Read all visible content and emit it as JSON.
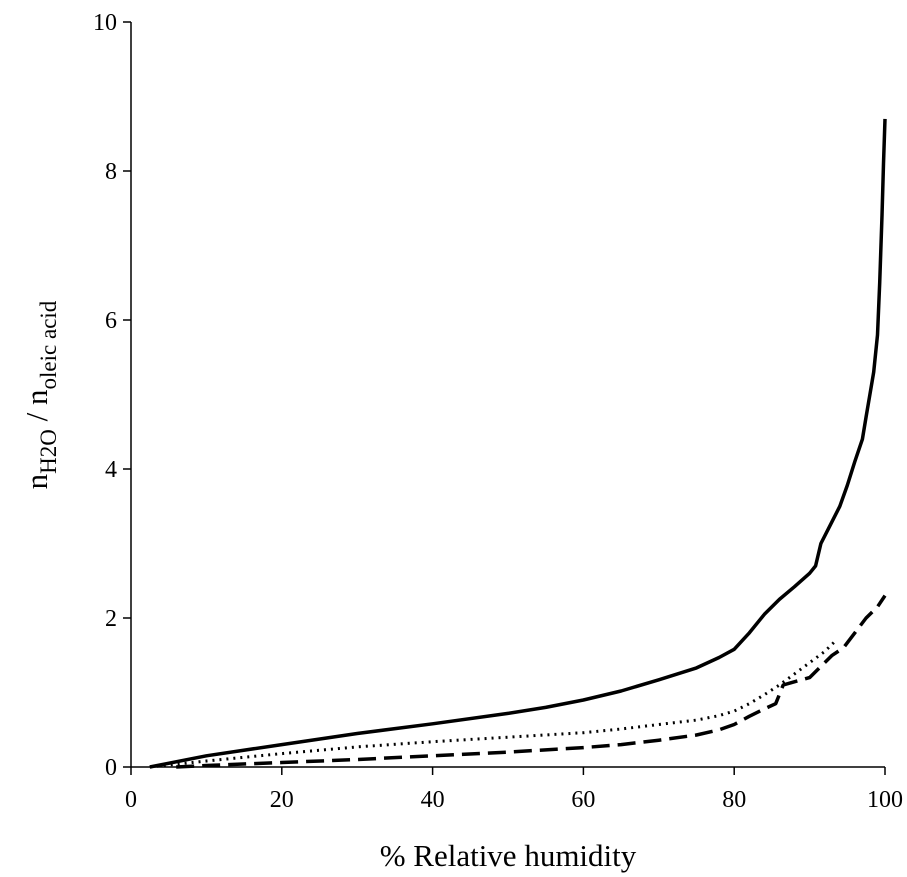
{
  "chart_data": {
    "type": "line",
    "xlabel": "% Relative humidity",
    "ylabel": {
      "parts": [
        {
          "text": "n",
          "sub": false
        },
        {
          "text": "H2O",
          "sub": true
        },
        {
          "text": " / n",
          "sub": false
        },
        {
          "text": "oleic acid",
          "sub": true
        }
      ]
    },
    "xlim": [
      0,
      100
    ],
    "ylim": [
      0,
      10
    ],
    "x_ticks": [
      "0",
      "20",
      "40",
      "60",
      "80",
      "100"
    ],
    "y_ticks": [
      "0",
      "2",
      "4",
      "6",
      "8",
      "10"
    ],
    "grid": false,
    "series": [
      {
        "style": "solid",
        "x": [
          2.5,
          10,
          20,
          30,
          40,
          50,
          55,
          60,
          65,
          70,
          75,
          78,
          80,
          82,
          84,
          86,
          88,
          90,
          90.8,
          91.5,
          92.5,
          94,
          95,
          96,
          97,
          97.5,
          98,
          98.5,
          99,
          99.3,
          99.6,
          99.8,
          100
        ],
        "y": [
          0,
          0.15,
          0.3,
          0.45,
          0.58,
          0.72,
          0.8,
          0.9,
          1.02,
          1.17,
          1.33,
          1.47,
          1.58,
          1.8,
          2.05,
          2.25,
          2.42,
          2.6,
          2.7,
          3.0,
          3.2,
          3.5,
          3.78,
          4.1,
          4.4,
          4.7,
          5.0,
          5.3,
          5.8,
          6.5,
          7.4,
          8.1,
          8.7
        ]
      },
      {
        "style": "dotted",
        "x": [
          2.5,
          10,
          20,
          30,
          40,
          50,
          60,
          65,
          70,
          75,
          78,
          80,
          82,
          84,
          86,
          88,
          90,
          92,
          93.5
        ],
        "y": [
          0,
          0.08,
          0.18,
          0.27,
          0.34,
          0.4,
          0.46,
          0.51,
          0.57,
          0.63,
          0.69,
          0.75,
          0.85,
          0.97,
          1.1,
          1.25,
          1.4,
          1.55,
          1.7
        ]
      },
      {
        "style": "dashed",
        "x": [
          6,
          10,
          20,
          30,
          40,
          50,
          60,
          65,
          70,
          75,
          78,
          80,
          82,
          84,
          85.5,
          86.5,
          87.5,
          90,
          91.5,
          93,
          94.5,
          96,
          97.5,
          99,
          100
        ],
        "y": [
          0,
          0.02,
          0.06,
          0.1,
          0.15,
          0.2,
          0.26,
          0.3,
          0.36,
          0.43,
          0.5,
          0.57,
          0.68,
          0.78,
          0.85,
          1.1,
          1.13,
          1.2,
          1.35,
          1.5,
          1.6,
          1.8,
          2.0,
          2.15,
          2.3
        ]
      }
    ]
  }
}
